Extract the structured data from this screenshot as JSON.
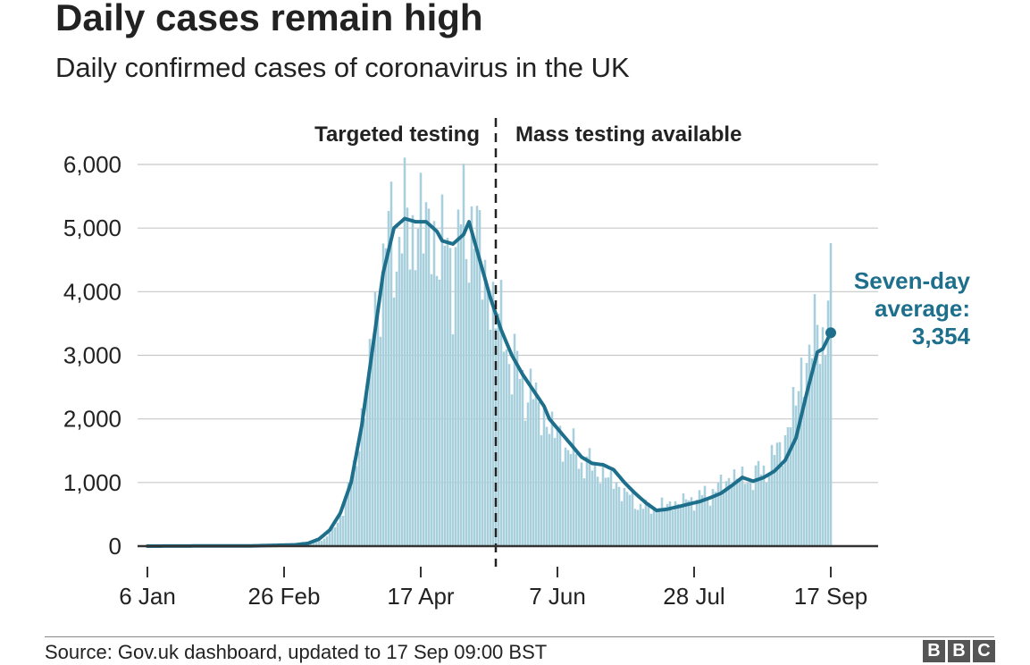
{
  "title": "Daily cases remain high",
  "subtitle": "Daily confirmed cases of coronavirus in the UK",
  "source": "Source: Gov.uk dashboard, updated to 17 Sep 09:00 BST",
  "logo": [
    "B",
    "B",
    "C"
  ],
  "colors": {
    "bars": "#a7cfdc",
    "line": "#1e6f8c",
    "grid": "#c8c8c8",
    "divider": "#222222",
    "text": "#222222"
  },
  "chart_data": {
    "type": "bar",
    "x_start": "6 Jan",
    "x_end": "17 Sep",
    "xticks": [
      {
        "day": 0,
        "label": "6 Jan"
      },
      {
        "day": 51,
        "label": "26 Feb"
      },
      {
        "day": 102,
        "label": "17 Apr"
      },
      {
        "day": 153,
        "label": "7 Jun"
      },
      {
        "day": 204,
        "label": "28 Jul"
      },
      {
        "day": 255,
        "label": "17 Sep"
      }
    ],
    "ylim": [
      0,
      6000
    ],
    "yticks": [
      {
        "value": 0,
        "label": "0"
      },
      {
        "value": 1000,
        "label": "1,000"
      },
      {
        "value": 2000,
        "label": "2,000"
      },
      {
        "value": 3000,
        "label": "3,000"
      },
      {
        "value": 4000,
        "label": "4,000"
      },
      {
        "value": 5000,
        "label": "5,000"
      },
      {
        "value": 6000,
        "label": "6,000"
      }
    ],
    "divider_day": 130,
    "period_labels": {
      "before": "Targeted testing",
      "after": "Mass testing available"
    },
    "annotation": {
      "lines": [
        "Seven-day",
        "average:",
        "3,354"
      ],
      "value": 3354
    },
    "daily_anchors": [
      [
        0,
        0
      ],
      [
        40,
        5
      ],
      [
        55,
        20
      ],
      [
        62,
        60
      ],
      [
        66,
        120
      ],
      [
        70,
        300
      ],
      [
        74,
        700
      ],
      [
        78,
        1400
      ],
      [
        82,
        2500
      ],
      [
        86,
        4000
      ],
      [
        90,
        4800
      ],
      [
        94,
        4900
      ],
      [
        98,
        5000
      ],
      [
        102,
        5100
      ],
      [
        106,
        4900
      ],
      [
        110,
        4600
      ],
      [
        114,
        4600
      ],
      [
        118,
        5000
      ],
      [
        122,
        5100
      ],
      [
        126,
        4200
      ],
      [
        130,
        3700
      ],
      [
        134,
        3200
      ],
      [
        138,
        2700
      ],
      [
        142,
        2500
      ],
      [
        146,
        2200
      ],
      [
        150,
        1900
      ],
      [
        154,
        1700
      ],
      [
        158,
        1500
      ],
      [
        162,
        1350
      ],
      [
        166,
        1250
      ],
      [
        170,
        1150
      ],
      [
        174,
        1000
      ],
      [
        178,
        850
      ],
      [
        182,
        700
      ],
      [
        186,
        600
      ],
      [
        190,
        620
      ],
      [
        194,
        650
      ],
      [
        198,
        680
      ],
      [
        202,
        720
      ],
      [
        206,
        770
      ],
      [
        210,
        830
      ],
      [
        214,
        950
      ],
      [
        218,
        1100
      ],
      [
        222,
        1050
      ],
      [
        226,
        1080
      ],
      [
        230,
        1200
      ],
      [
        234,
        1400
      ],
      [
        238,
        1700
      ],
      [
        242,
        2300
      ],
      [
        246,
        3000
      ],
      [
        250,
        3300
      ],
      [
        253,
        3600
      ],
      [
        255,
        3800
      ]
    ],
    "average_anchors": [
      [
        0,
        0
      ],
      [
        40,
        5
      ],
      [
        55,
        20
      ],
      [
        60,
        45
      ],
      [
        64,
        110
      ],
      [
        68,
        250
      ],
      [
        72,
        520
      ],
      [
        76,
        1000
      ],
      [
        80,
        1900
      ],
      [
        84,
        3100
      ],
      [
        88,
        4300
      ],
      [
        92,
        5000
      ],
      [
        96,
        5150
      ],
      [
        100,
        5100
      ],
      [
        104,
        5100
      ],
      [
        108,
        4950
      ],
      [
        110,
        4800
      ],
      [
        114,
        4750
      ],
      [
        118,
        4900
      ],
      [
        120,
        5100
      ],
      [
        124,
        4500
      ],
      [
        128,
        3900
      ],
      [
        132,
        3400
      ],
      [
        136,
        3000
      ],
      [
        140,
        2700
      ],
      [
        144,
        2450
      ],
      [
        148,
        2200
      ],
      [
        150,
        2000
      ],
      [
        154,
        1800
      ],
      [
        158,
        1600
      ],
      [
        162,
        1400
      ],
      [
        166,
        1300
      ],
      [
        170,
        1280
      ],
      [
        174,
        1200
      ],
      [
        178,
        1000
      ],
      [
        182,
        830
      ],
      [
        186,
        680
      ],
      [
        190,
        560
      ],
      [
        194,
        580
      ],
      [
        198,
        620
      ],
      [
        202,
        660
      ],
      [
        206,
        700
      ],
      [
        210,
        760
      ],
      [
        214,
        830
      ],
      [
        218,
        950
      ],
      [
        222,
        1080
      ],
      [
        226,
        1020
      ],
      [
        230,
        1080
      ],
      [
        234,
        1180
      ],
      [
        238,
        1350
      ],
      [
        242,
        1700
      ],
      [
        246,
        2400
      ],
      [
        250,
        3050
      ],
      [
        252,
        3100
      ],
      [
        255,
        3354
      ]
    ]
  }
}
